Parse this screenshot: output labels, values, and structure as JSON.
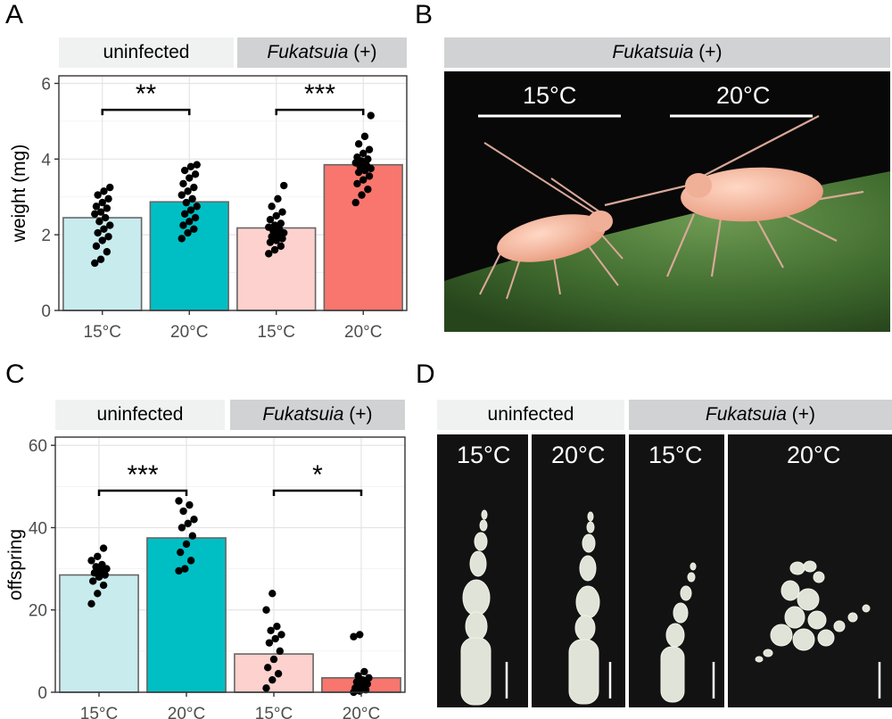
{
  "panels": {
    "a": {
      "letter": "A",
      "strip_left": "uninfected",
      "strip_right_italic": "Fukatsuia",
      "strip_right_suffix": " (+)"
    },
    "b": {
      "letter": "B",
      "strip_italic": "Fukatsuia",
      "strip_suffix": " (+)",
      "label_left": "15°C",
      "label_right": "20°C"
    },
    "c": {
      "letter": "C",
      "strip_left": "uninfected",
      "strip_right_italic": "Fukatsuia",
      "strip_right_suffix": " (+)"
    },
    "d": {
      "letter": "D",
      "strip_left": "uninfected",
      "strip_right_italic": "Fukatsuia",
      "strip_right_suffix": " (+)",
      "labels": [
        "15°C",
        "20°C",
        "15°C",
        "20°C"
      ]
    }
  },
  "colors": {
    "uninf_15": "#c8ebee",
    "uninf_20": "#00bfc4",
    "fuk_15": "#fdd1cd",
    "fuk_20": "#f8766d",
    "bar_edge": "#666666",
    "grid": "#e4e4e4",
    "photo_bg": "#0a0a0a",
    "leaf": "#4f7a3a",
    "aphid": "#f2b39a"
  },
  "chart_data": [
    {
      "type": "bar",
      "ylabel": "weight (mg)",
      "categories": [
        "15°C",
        "20°C",
        "15°C",
        "20°C"
      ],
      "groups": [
        "uninfected",
        "uninfected",
        "Fukatsuia (+)",
        "Fukatsuia (+)"
      ],
      "values": [
        2.45,
        2.87,
        2.18,
        3.85
      ],
      "ylim": [
        0,
        6.2
      ],
      "yticks": [
        0,
        2,
        4,
        6
      ],
      "points": [
        [
          1.25,
          1.35,
          1.55,
          1.7,
          1.85,
          1.95,
          2.05,
          2.15,
          2.25,
          2.35,
          2.45,
          2.55,
          2.6,
          2.7,
          2.75,
          2.85,
          2.95,
          3.05,
          3.15,
          3.25
        ],
        [
          1.9,
          2.05,
          2.15,
          2.25,
          2.35,
          2.45,
          2.55,
          2.65,
          2.75,
          2.85,
          2.95,
          3.05,
          3.15,
          3.25,
          3.35,
          3.5,
          3.6,
          3.7,
          3.8,
          3.85
        ],
        [
          1.5,
          1.6,
          1.7,
          1.8,
          1.85,
          1.9,
          1.95,
          2.0,
          2.05,
          2.1,
          2.15,
          2.2,
          2.25,
          2.3,
          2.4,
          2.5,
          2.6,
          2.75,
          2.95,
          3.3
        ],
        [
          2.85,
          3.05,
          3.2,
          3.35,
          3.45,
          3.55,
          3.65,
          3.7,
          3.75,
          3.8,
          3.85,
          3.9,
          3.95,
          4.0,
          4.05,
          4.15,
          4.25,
          4.4,
          4.6,
          5.15
        ]
      ],
      "significance": [
        {
          "from": 0,
          "to": 1,
          "label": "**",
          "y": 5.3
        },
        {
          "from": 2,
          "to": 3,
          "label": "***",
          "y": 5.3
        }
      ],
      "grid": true
    },
    {
      "type": "bar",
      "ylabel": "offspring",
      "categories": [
        "15°C",
        "20°C",
        "15°C",
        "20°C"
      ],
      "groups": [
        "uninfected",
        "uninfected",
        "Fukatsuia (+)",
        "Fukatsuia (+)"
      ],
      "values": [
        28.5,
        37.5,
        9.3,
        3.5
      ],
      "ylim": [
        0,
        62
      ],
      "yticks": [
        0,
        20,
        40,
        60
      ],
      "points": [
        [
          21.5,
          24,
          26,
          27,
          28,
          28.5,
          29,
          29.5,
          30,
          30.5,
          31,
          32,
          33,
          35
        ],
        [
          29.5,
          30,
          32,
          34,
          36,
          38,
          40,
          41,
          42,
          44,
          45.5,
          46.5
        ],
        [
          1,
          3,
          4.5,
          6,
          8,
          10,
          12,
          13,
          14,
          15,
          16,
          20,
          24
        ],
        [
          0,
          0.3,
          0.6,
          1,
          1.5,
          2,
          2.5,
          3,
          3.5,
          4,
          5,
          13.5,
          14
        ]
      ],
      "significance": [
        {
          "from": 0,
          "to": 1,
          "label": "***",
          "y": 49
        },
        {
          "from": 2,
          "to": 3,
          "label": "*",
          "y": 49
        }
      ],
      "grid": true
    }
  ]
}
